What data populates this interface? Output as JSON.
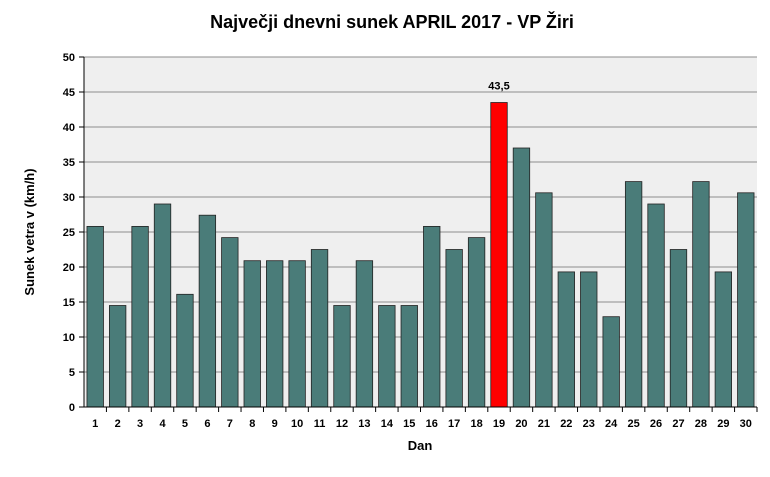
{
  "chart_data": {
    "type": "bar",
    "title": "Največji dnevni sunek APRIL 2017 - VP Žiri",
    "xlabel": "Dan",
    "ylabel": "Sunek vetra v (km/h)",
    "ylim": [
      0,
      50
    ],
    "yticks": [
      0,
      5,
      10,
      15,
      20,
      25,
      30,
      35,
      40,
      45,
      50
    ],
    "grid": true,
    "categories": [
      "1",
      "2",
      "3",
      "4",
      "5",
      "6",
      "7",
      "8",
      "9",
      "10",
      "11",
      "12",
      "13",
      "14",
      "15",
      "16",
      "17",
      "18",
      "19",
      "20",
      "21",
      "22",
      "23",
      "24",
      "25",
      "26",
      "27",
      "28",
      "29",
      "30"
    ],
    "values": [
      25.8,
      14.5,
      25.8,
      29.0,
      16.1,
      27.4,
      24.2,
      20.9,
      20.9,
      20.9,
      22.5,
      14.5,
      20.9,
      14.5,
      14.5,
      25.8,
      22.5,
      24.2,
      43.5,
      37.0,
      30.6,
      19.3,
      19.3,
      12.9,
      32.2,
      29.0,
      22.5,
      32.2,
      19.3,
      30.6
    ],
    "highlight_index": 18,
    "data_labels": [
      {
        "index": 18,
        "text": "43,5"
      }
    ],
    "colors": {
      "bar": "#4a7c79",
      "highlight": "#ff0000",
      "plot_bg": "#efefef",
      "grid": "#8c8c8c"
    }
  }
}
